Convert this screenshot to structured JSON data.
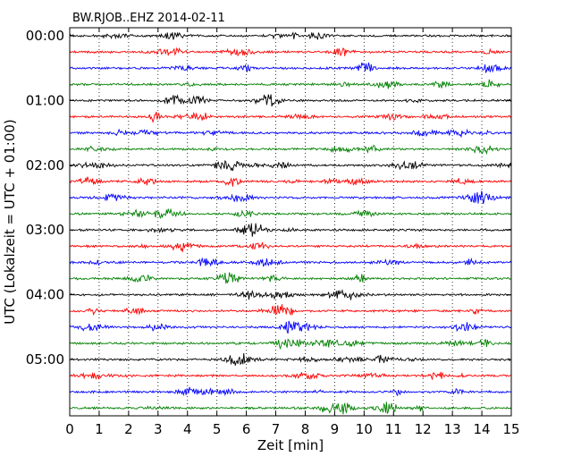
{
  "chart_data": {
    "type": "line",
    "title": "BW.RJOB..EHZ 2014-02-11",
    "xlabel": "Zeit  [min]",
    "ylabel": "UTC (Lokalzeit = UTC + 01:00)",
    "xlim": [
      0,
      15
    ],
    "x_ticks": [
      "0",
      "1",
      "2",
      "3",
      "4",
      "5",
      "6",
      "7",
      "8",
      "9",
      "10",
      "11",
      "12",
      "13",
      "14",
      "15"
    ],
    "y_ticks": [
      "00:00",
      "01:00",
      "02:00",
      "03:00",
      "04:00",
      "05:00"
    ],
    "y_tick_rows": [
      0,
      4,
      8,
      12,
      16,
      20
    ],
    "row_count": 24,
    "minutes_per_row": 15,
    "grid": "vertical dotted at each minute",
    "series_colors": [
      "#000000",
      "#ff0000",
      "#0000ff",
      "#008000"
    ],
    "series": [
      {
        "start": "00:00",
        "color": "#000000"
      },
      {
        "start": "00:15",
        "color": "#ff0000"
      },
      {
        "start": "00:30",
        "color": "#0000ff"
      },
      {
        "start": "00:45",
        "color": "#008000"
      },
      {
        "start": "01:00",
        "color": "#000000"
      },
      {
        "start": "01:15",
        "color": "#ff0000"
      },
      {
        "start": "01:30",
        "color": "#0000ff"
      },
      {
        "start": "01:45",
        "color": "#008000"
      },
      {
        "start": "02:00",
        "color": "#000000"
      },
      {
        "start": "02:15",
        "color": "#ff0000"
      },
      {
        "start": "02:30",
        "color": "#0000ff"
      },
      {
        "start": "02:45",
        "color": "#008000"
      },
      {
        "start": "03:00",
        "color": "#000000"
      },
      {
        "start": "03:15",
        "color": "#ff0000"
      },
      {
        "start": "03:30",
        "color": "#0000ff"
      },
      {
        "start": "03:45",
        "color": "#008000"
      },
      {
        "start": "04:00",
        "color": "#000000"
      },
      {
        "start": "04:15",
        "color": "#ff0000"
      },
      {
        "start": "04:30",
        "color": "#0000ff"
      },
      {
        "start": "04:45",
        "color": "#008000"
      },
      {
        "start": "05:00",
        "color": "#000000"
      },
      {
        "start": "05:15",
        "color": "#ff0000"
      },
      {
        "start": "05:30",
        "color": "#0000ff"
      },
      {
        "start": "05:45",
        "color": "#008000"
      }
    ]
  }
}
